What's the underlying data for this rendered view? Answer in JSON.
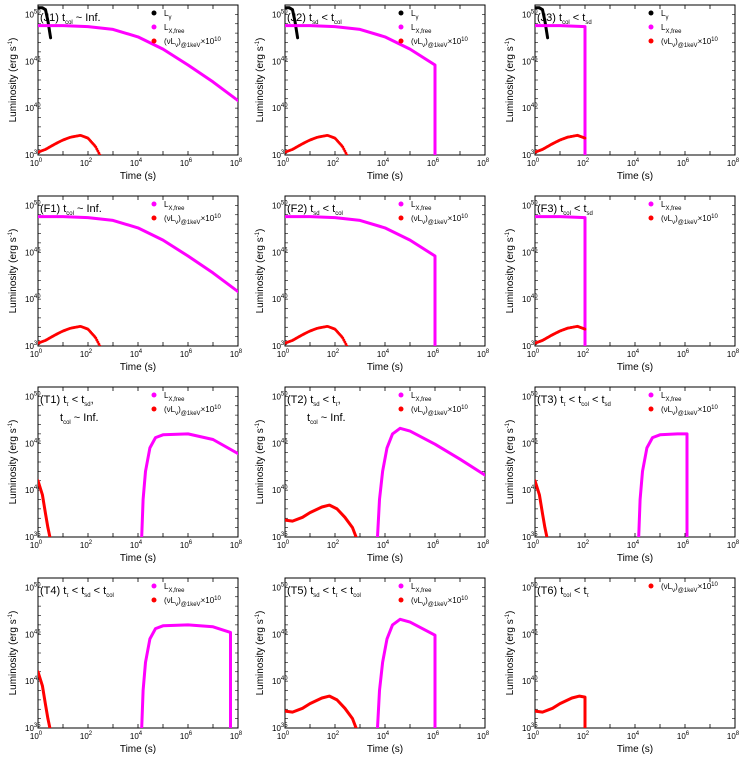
{
  "chart_data": [
    {
      "type": "line",
      "id": "J1",
      "title_parts": [
        "(J1) t",
        "col",
        " ~ Inf."
      ],
      "xlabel": "Time (s)",
      "ylabel": "Luminosity (erg s",
      "ylabel_sup": "-1",
      "ylabel_end": ")",
      "xlim": [
        1,
        100000000.0
      ],
      "ylim": [
        1e+35,
        1e+51
      ],
      "legend": "top-right",
      "series": [
        {
          "name": "L",
          "name_sub": "γ",
          "color": "#000000",
          "style": "line",
          "x": [
            1,
            1.5,
            2,
            2.5,
            3.2
          ],
          "y": [
            50.7,
            50.7,
            50.5,
            49.3,
            47.5
          ]
        },
        {
          "name": "L",
          "name_sub": "X,free",
          "color": "#ff00ff",
          "style": "line",
          "x": [
            1,
            10,
            100,
            1000,
            10000.0,
            100000.0,
            1000000.0,
            10000000.0,
            100000000.0
          ],
          "y": [
            48.8,
            48.8,
            48.7,
            48.4,
            47.6,
            46.3,
            44.6,
            42.8,
            40.8
          ]
        },
        {
          "name": "(νL",
          "name_sub": "ν",
          "name_mid": ")",
          "name_sub2": "@1keV",
          "name_end": "×10",
          "name_sup": "10",
          "color": "#ff0000",
          "style": "dots",
          "x": [
            1,
            2,
            5,
            10,
            20,
            50,
            100,
            200,
            300
          ],
          "y": [
            35.3,
            35.6,
            36.2,
            36.6,
            36.9,
            37.1,
            36.8,
            35.9,
            35.0
          ]
        }
      ]
    },
    {
      "type": "line",
      "id": "J2",
      "title_parts": [
        "(J2) t",
        "sd",
        " < t",
        "col"
      ],
      "xlabel": "Time (s)",
      "ylabel": "Luminosity (erg s",
      "ylabel_sup": "-1",
      "ylabel_end": ")",
      "xlim": [
        1,
        100000000.0
      ],
      "ylim": [
        1e+35,
        1e+51
      ],
      "legend": "top-right",
      "series": [
        {
          "name": "L",
          "name_sub": "γ",
          "color": "#000000",
          "style": "line",
          "x": [
            1,
            1.5,
            2,
            2.5,
            3.2
          ],
          "y": [
            50.7,
            50.7,
            50.5,
            49.3,
            47.5
          ]
        },
        {
          "name": "L",
          "name_sub": "X,free",
          "color": "#ff00ff",
          "style": "line",
          "x": [
            1,
            10,
            100,
            1000,
            10000.0,
            100000.0,
            1000000.0,
            1000000.0
          ],
          "y": [
            48.8,
            48.8,
            48.7,
            48.4,
            47.6,
            46.3,
            44.6,
            35
          ]
        },
        {
          "name": "(νL",
          "name_sub": "ν",
          "name_mid": ")",
          "name_sub2": "@1keV",
          "name_end": "×10",
          "name_sup": "10",
          "color": "#ff0000",
          "style": "dots",
          "x": [
            1,
            2,
            5,
            10,
            20,
            50,
            100,
            200,
            300
          ],
          "y": [
            35.3,
            35.6,
            36.2,
            36.6,
            36.9,
            37.1,
            36.8,
            35.9,
            35.0
          ]
        }
      ]
    },
    {
      "type": "line",
      "id": "J3",
      "title_parts": [
        "(J3) t",
        "col",
        " < t",
        "sd"
      ],
      "xlabel": "Time (s)",
      "ylabel": "Luminosity (erg s",
      "ylabel_sup": "-1",
      "ylabel_end": ")",
      "xlim": [
        1,
        100000000.0
      ],
      "ylim": [
        1e+35,
        1e+51
      ],
      "legend": "top-right",
      "series": [
        {
          "name": "L",
          "name_sub": "γ",
          "color": "#000000",
          "style": "line",
          "x": [
            1,
            1.5,
            2,
            2.5,
            3.2
          ],
          "y": [
            50.7,
            50.7,
            50.5,
            49.3,
            47.5
          ]
        },
        {
          "name": "L",
          "name_sub": "X,free",
          "color": "#ff00ff",
          "style": "line",
          "x": [
            1,
            10,
            100,
            100
          ],
          "y": [
            48.8,
            48.8,
            48.7,
            35
          ]
        },
        {
          "name": "(νL",
          "name_sub": "ν",
          "name_mid": ")",
          "name_sub2": "@1keV",
          "name_end": "×10",
          "name_sup": "10",
          "color": "#ff0000",
          "style": "dots",
          "x": [
            1,
            2,
            5,
            10,
            20,
            50,
            100
          ],
          "y": [
            35.3,
            35.6,
            36.2,
            36.6,
            36.9,
            37.1,
            36.8
          ]
        }
      ]
    },
    {
      "type": "line",
      "id": "F1",
      "title_parts": [
        "(F1) t",
        "col",
        " ~ Inf."
      ],
      "xlabel": "Time (s)",
      "ylabel": "Luminosity (erg s",
      "ylabel_sup": "-1",
      "ylabel_end": ")",
      "xlim": [
        1,
        100000000.0
      ],
      "ylim": [
        1e+35,
        1e+51
      ],
      "legend": "top-right",
      "series": [
        {
          "name": "L",
          "name_sub": "X,free",
          "color": "#ff00ff",
          "style": "line",
          "x": [
            1,
            10,
            100,
            1000,
            10000.0,
            100000.0,
            1000000.0,
            10000000.0,
            100000000.0
          ],
          "y": [
            48.8,
            48.8,
            48.7,
            48.4,
            47.6,
            46.3,
            44.6,
            42.8,
            40.8
          ]
        },
        {
          "name": "(νL",
          "name_sub": "ν",
          "name_mid": ")",
          "name_sub2": "@1keV",
          "name_end": "×10",
          "name_sup": "10",
          "color": "#ff0000",
          "style": "dots",
          "x": [
            1,
            2,
            5,
            10,
            20,
            50,
            100,
            200,
            300
          ],
          "y": [
            35.3,
            35.6,
            36.2,
            36.6,
            36.9,
            37.1,
            36.8,
            35.9,
            35.0
          ]
        }
      ]
    },
    {
      "type": "line",
      "id": "F2",
      "title_parts": [
        "(F2) t",
        "sd",
        " < t",
        "col"
      ],
      "xlabel": "Time (s)",
      "ylabel": "Luminosity (erg s",
      "ylabel_sup": "-1",
      "ylabel_end": ")",
      "xlim": [
        1,
        100000000.0
      ],
      "ylim": [
        1e+35,
        1e+51
      ],
      "legend": "top-right",
      "series": [
        {
          "name": "L",
          "name_sub": "X,free",
          "color": "#ff00ff",
          "style": "line",
          "x": [
            1,
            10,
            100,
            1000,
            10000.0,
            100000.0,
            1000000.0,
            1000000.0
          ],
          "y": [
            48.8,
            48.8,
            48.7,
            48.4,
            47.6,
            46.3,
            44.6,
            35
          ]
        },
        {
          "name": "(νL",
          "name_sub": "ν",
          "name_mid": ")",
          "name_sub2": "@1keV",
          "name_end": "×10",
          "name_sup": "10",
          "color": "#ff0000",
          "style": "dots",
          "x": [
            1,
            2,
            5,
            10,
            20,
            50,
            100,
            200,
            300
          ],
          "y": [
            35.3,
            35.6,
            36.2,
            36.6,
            36.9,
            37.1,
            36.8,
            35.9,
            35.0
          ]
        }
      ]
    },
    {
      "type": "line",
      "id": "F3",
      "title_parts": [
        "(F3) t",
        "col",
        " < t",
        "sd"
      ],
      "xlabel": "Time (s)",
      "ylabel": "Luminosity (erg s",
      "ylabel_sup": "-1",
      "ylabel_end": ")",
      "xlim": [
        1,
        100000000.0
      ],
      "ylim": [
        1e+35,
        1e+51
      ],
      "legend": "top-right",
      "series": [
        {
          "name": "L",
          "name_sub": "X,free",
          "color": "#ff00ff",
          "style": "line",
          "x": [
            1,
            10,
            100,
            100
          ],
          "y": [
            48.8,
            48.8,
            48.7,
            35
          ]
        },
        {
          "name": "(νL",
          "name_sub": "ν",
          "name_mid": ")",
          "name_sub2": "@1keV",
          "name_end": "×10",
          "name_sup": "10",
          "color": "#ff0000",
          "style": "dots",
          "x": [
            1,
            2,
            5,
            10,
            20,
            50,
            100
          ],
          "y": [
            35.3,
            35.6,
            36.2,
            36.6,
            36.9,
            37.1,
            36.8
          ]
        }
      ]
    },
    {
      "type": "line",
      "id": "T1",
      "title_parts": [
        "(T1) t",
        "τ",
        " < t",
        "sd",
        ","
      ],
      "title_line2": [
        "t",
        "col",
        " ~ Inf."
      ],
      "xlabel": "Time (s)",
      "ylabel": "Luminosity (erg s",
      "ylabel_sup": "-1",
      "ylabel_end": ")",
      "xlim": [
        1,
        100000000.0
      ],
      "ylim": [
        1e+35,
        1e+51
      ],
      "legend": "top-right",
      "series": [
        {
          "name": "L",
          "name_sub": "X,free",
          "color": "#ff00ff",
          "style": "line",
          "x": [
            14000.0,
            16000.0,
            20000.0,
            30000.0,
            50000.0,
            100000.0,
            1000000.0,
            10000000.0,
            100000000.0
          ],
          "y": [
            35,
            39,
            42,
            44.5,
            45.6,
            45.9,
            46,
            45.4,
            43.9
          ]
        },
        {
          "name": "(νL",
          "name_sub": "ν",
          "name_mid": ")",
          "name_sub2": "@1keV",
          "name_end": "×10",
          "name_sup": "10",
          "color": "#ff0000",
          "style": "line",
          "x": [
            1,
            1.5,
            2,
            2.5,
            3
          ],
          "y": [
            41,
            39.5,
            37.5,
            36,
            35
          ]
        }
      ]
    },
    {
      "type": "line",
      "id": "T2",
      "title_parts": [
        "(T2) t",
        "sd",
        " < t",
        "τ",
        ","
      ],
      "title_line2": [
        "t",
        "col",
        " ~ Inf."
      ],
      "xlabel": "Time (s)",
      "ylabel": "Luminosity (erg s",
      "ylabel_sup": "-1",
      "ylabel_end": ")",
      "xlim": [
        1,
        100000000.0
      ],
      "ylim": [
        1e+35,
        1e+51
      ],
      "legend": "top-right",
      "series": [
        {
          "name": "L",
          "name_sub": "X,free",
          "color": "#ff00ff",
          "style": "line",
          "x": [
            5000.0,
            6000.0,
            8000.0,
            12000.0,
            20000.0,
            40000.0,
            100000.0,
            1000000.0,
            10000000.0,
            100000000.0
          ],
          "y": [
            35,
            39,
            42,
            44.5,
            46,
            46.6,
            46.3,
            44.9,
            43.3,
            41.6
          ]
        },
        {
          "name": "(νL",
          "name_sub": "ν",
          "name_mid": ")",
          "name_sub2": "@1keV",
          "name_end": "×10",
          "name_sup": "10",
          "color": "#ff0000",
          "style": "line",
          "x": [
            1,
            2,
            5,
            10,
            30,
            60,
            120,
            250,
            500,
            700
          ],
          "y": [
            36.8,
            36.7,
            37.1,
            37.6,
            38.2,
            38.4,
            38.0,
            37.1,
            36.0,
            35.0
          ]
        }
      ]
    },
    {
      "type": "line",
      "id": "T3",
      "title_parts": [
        "(T3) t",
        "τ",
        " < t",
        "col",
        " < t",
        "sd"
      ],
      "xlabel": "Time (s)",
      "ylabel": "Luminosity (erg s",
      "ylabel_sup": "-1",
      "ylabel_end": ")",
      "xlim": [
        1,
        100000000.0
      ],
      "ylim": [
        1e+35,
        1e+51
      ],
      "legend": "top-right",
      "series": [
        {
          "name": "L",
          "name_sub": "X,free",
          "color": "#ff00ff",
          "style": "line",
          "x": [
            14000.0,
            16000.0,
            20000.0,
            30000.0,
            50000.0,
            100000.0,
            500000.0,
            1200000.0,
            1200000.0
          ],
          "y": [
            35,
            39,
            42,
            44.5,
            45.6,
            45.9,
            46,
            46,
            35
          ]
        },
        {
          "name": "(νL",
          "name_sub": "ν",
          "name_mid": ")",
          "name_sub2": "@1keV",
          "name_end": "×10",
          "name_sup": "10",
          "color": "#ff0000",
          "style": "line",
          "x": [
            1,
            1.5,
            2,
            2.5,
            3
          ],
          "y": [
            41,
            39.5,
            37.5,
            36,
            35
          ]
        }
      ]
    },
    {
      "type": "line",
      "id": "T4",
      "title_parts": [
        "(T4) t",
        "τ",
        " < t",
        "sd",
        " < t",
        "col"
      ],
      "xlabel": "Time (s)",
      "ylabel": "Luminosity (erg s",
      "ylabel_sup": "-1",
      "ylabel_end": ")",
      "xlim": [
        1,
        100000000.0
      ],
      "ylim": [
        1e+35,
        1e+51
      ],
      "legend": "top-right",
      "series": [
        {
          "name": "L",
          "name_sub": "X,free",
          "color": "#ff00ff",
          "style": "line",
          "x": [
            14000.0,
            16000.0,
            20000.0,
            30000.0,
            50000.0,
            100000.0,
            1000000.0,
            10000000.0,
            50000000.0,
            50000000.0
          ],
          "y": [
            35,
            39,
            42,
            44.5,
            45.6,
            45.9,
            46,
            45.8,
            45.2,
            35
          ]
        },
        {
          "name": "(νL",
          "name_sub": "ν",
          "name_mid": ")",
          "name_sub2": "@1keV",
          "name_end": "×10",
          "name_sup": "10",
          "color": "#ff0000",
          "style": "line",
          "x": [
            1,
            1.5,
            2,
            2.5,
            3
          ],
          "y": [
            41,
            39.5,
            37.5,
            36,
            35
          ]
        }
      ]
    },
    {
      "type": "line",
      "id": "T5",
      "title_parts": [
        "(T5) t",
        "sd",
        " < t",
        "τ",
        " < t",
        "col"
      ],
      "xlabel": "Time (s)",
      "ylabel": "Luminosity (erg s",
      "ylabel_sup": "-1",
      "ylabel_end": ")",
      "xlim": [
        1,
        100000000.0
      ],
      "ylim": [
        1e+35,
        1e+51
      ],
      "legend": "top-right",
      "series": [
        {
          "name": "L",
          "name_sub": "X,free",
          "color": "#ff00ff",
          "style": "line",
          "x": [
            5000.0,
            6000.0,
            8000.0,
            12000.0,
            20000.0,
            40000.0,
            100000.0,
            1000000.0,
            1000000.0
          ],
          "y": [
            35,
            39,
            42,
            44.5,
            46,
            46.6,
            46.3,
            44.9,
            35
          ]
        },
        {
          "name": "(νL",
          "name_sub": "ν",
          "name_mid": ")",
          "name_sub2": "@1keV",
          "name_end": "×10",
          "name_sup": "10",
          "color": "#ff0000",
          "style": "line",
          "x": [
            1,
            2,
            5,
            10,
            30,
            60,
            120,
            250,
            500,
            700
          ],
          "y": [
            36.8,
            36.7,
            37.1,
            37.6,
            38.2,
            38.4,
            38.0,
            37.1,
            36.0,
            35.0
          ]
        }
      ]
    },
    {
      "type": "line",
      "id": "T6",
      "title_parts": [
        "(T6) t",
        "col",
        " < t",
        "τ"
      ],
      "xlabel": "Time (s)",
      "ylabel": "Luminosity (erg s",
      "ylabel_sup": "-1",
      "ylabel_end": ")",
      "xlim": [
        1,
        100000000.0
      ],
      "ylim": [
        1e+35,
        1e+51
      ],
      "legend": "top-right",
      "series": [
        {
          "name": "(νL",
          "name_sub": "ν",
          "name_mid": ")",
          "name_sub2": "@1keV",
          "name_end": "×10",
          "name_sup": "10",
          "color": "#ff0000",
          "style": "line",
          "x": [
            1,
            2,
            5,
            10,
            30,
            60,
            100,
            100
          ],
          "y": [
            36.8,
            36.7,
            37.1,
            37.6,
            38.2,
            38.4,
            38.3,
            35
          ]
        }
      ]
    }
  ]
}
